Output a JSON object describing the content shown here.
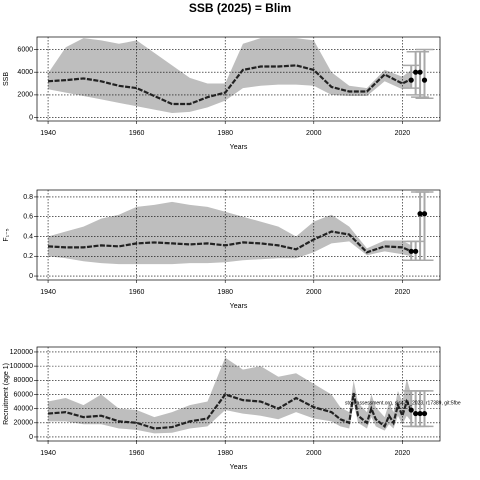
{
  "chart_data": [
    {
      "type": "line",
      "title": "SSB (2025) = Blim",
      "x_label": "Years",
      "y_label": "SSB",
      "x": [
        1940,
        1944,
        1948,
        1952,
        1956,
        1960,
        1964,
        1968,
        1972,
        1976,
        1980,
        1984,
        1988,
        1992,
        1996,
        2000,
        2004,
        2008,
        2012,
        2016,
        2020,
        2022
      ],
      "median": [
        3200,
        3300,
        3450,
        3200,
        2800,
        2600,
        1900,
        1200,
        1200,
        1800,
        2200,
        4200,
        4500,
        4500,
        4600,
        4200,
        2700,
        2300,
        2300,
        3800,
        3000,
        3400
      ],
      "upper": [
        3900,
        6200,
        7000,
        6800,
        6500,
        6800,
        5700,
        4600,
        3500,
        3000,
        3000,
        6500,
        7000,
        7000,
        7000,
        6800,
        4000,
        2800,
        2600,
        4200,
        3600,
        4200
      ],
      "lower": [
        2500,
        2200,
        1900,
        1600,
        1300,
        1000,
        700,
        400,
        500,
        900,
        1500,
        2600,
        2800,
        2900,
        2900,
        2800,
        2000,
        1900,
        1900,
        3200,
        2500,
        2700
      ],
      "projection": {
        "x": [
          2022,
          2023,
          2024,
          2025
        ],
        "values": [
          3300,
          4000,
          4000,
          3300
        ],
        "lower": [
          2600,
          2000,
          1800,
          1700
        ],
        "upper": [
          4600,
          5800,
          5800,
          6000
        ]
      },
      "band_color": "#bebebe",
      "line_color": "#222222",
      "errorbar_color": "#a8a8a8",
      "xlim": [
        1937.5,
        2028.5
      ],
      "xticks": [
        1940,
        1960,
        1980,
        2000,
        2020
      ],
      "ylim": [
        -300,
        7100
      ],
      "yticks": [
        0,
        2000,
        4000,
        6000
      ],
      "grid": true
    },
    {
      "type": "line",
      "x_label": "Years",
      "y_label": "F₁₋₅",
      "x": [
        1940,
        1944,
        1948,
        1952,
        1956,
        1960,
        1964,
        1968,
        1972,
        1976,
        1980,
        1984,
        1988,
        1992,
        1996,
        2000,
        2004,
        2008,
        2012,
        2016,
        2020,
        2022
      ],
      "median": [
        0.3,
        0.29,
        0.29,
        0.31,
        0.3,
        0.33,
        0.34,
        0.33,
        0.32,
        0.33,
        0.31,
        0.34,
        0.33,
        0.31,
        0.27,
        0.37,
        0.45,
        0.42,
        0.24,
        0.3,
        0.29,
        0.25
      ],
      "upper": [
        0.4,
        0.45,
        0.5,
        0.58,
        0.62,
        0.7,
        0.72,
        0.75,
        0.72,
        0.7,
        0.65,
        0.6,
        0.55,
        0.5,
        0.4,
        0.55,
        0.62,
        0.5,
        0.28,
        0.36,
        0.36,
        0.31
      ],
      "lower": [
        0.2,
        0.18,
        0.15,
        0.13,
        0.12,
        0.12,
        0.12,
        0.12,
        0.13,
        0.13,
        0.14,
        0.16,
        0.17,
        0.18,
        0.18,
        0.24,
        0.33,
        0.35,
        0.21,
        0.25,
        0.22,
        0.2
      ],
      "projection": {
        "x": [
          2022,
          2023,
          2024,
          2025
        ],
        "values": [
          0.25,
          0.25,
          0.63,
          0.63
        ],
        "lower": [
          0.16,
          0.16,
          0.16,
          0.16
        ],
        "upper": [
          0.35,
          0.35,
          0.85,
          0.85
        ]
      },
      "band_color": "#bebebe",
      "line_color": "#222222",
      "errorbar_color": "#a8a8a8",
      "xlim": [
        1937.5,
        2028.5
      ],
      "xticks": [
        1940,
        1960,
        1980,
        2000,
        2020
      ],
      "ylim": [
        -0.04,
        0.87
      ],
      "yticks": [
        0.0,
        0.2,
        0.4,
        0.6,
        0.8
      ],
      "grid": true
    },
    {
      "type": "line",
      "x_label": "Years",
      "y_label": "Recruitment (age 1)",
      "annotation": "stockassessment.org, sjs479_2023, r17389, git:5fbe",
      "x": [
        1940,
        1944,
        1948,
        1952,
        1956,
        1960,
        1964,
        1968,
        1972,
        1976,
        1980,
        1984,
        1988,
        1992,
        1996,
        2000,
        2004,
        2006,
        2008,
        2009,
        2010,
        2012,
        2013,
        2014,
        2016,
        2017,
        2018,
        2019,
        2020,
        2021,
        2022
      ],
      "median": [
        33000,
        35000,
        28000,
        30000,
        22000,
        20000,
        12000,
        14000,
        22000,
        26000,
        60000,
        52000,
        50000,
        40000,
        55000,
        42000,
        35000,
        25000,
        20000,
        62000,
        30000,
        20000,
        40000,
        25000,
        15000,
        30000,
        20000,
        45000,
        30000,
        50000,
        38000
      ],
      "upper": [
        50000,
        55000,
        45000,
        60000,
        40000,
        38000,
        28000,
        35000,
        45000,
        50000,
        112000,
        95000,
        100000,
        85000,
        90000,
        75000,
        60000,
        42000,
        35000,
        80000,
        48000,
        35000,
        60000,
        42000,
        28000,
        48000,
        35000,
        65000,
        50000,
        82000,
        60000
      ],
      "lower": [
        22000,
        22000,
        18000,
        18000,
        12000,
        10000,
        5000,
        6000,
        12000,
        15000,
        38000,
        33000,
        30000,
        25000,
        35000,
        26000,
        22000,
        15000,
        12000,
        48000,
        20000,
        12000,
        28000,
        15000,
        9000,
        18000,
        12000,
        30000,
        18000,
        30000,
        22000
      ],
      "projection": {
        "x": [
          2022,
          2023,
          2024,
          2025
        ],
        "values": [
          38000,
          33000,
          33000,
          33000
        ],
        "lower": [
          15000,
          15000,
          15000,
          15000
        ],
        "upper": [
          65000,
          65000,
          65000,
          65000
        ]
      },
      "band_color": "#bebebe",
      "line_color": "#222222",
      "errorbar_color": "#a8a8a8",
      "xlim": [
        1937.5,
        2028.5
      ],
      "xticks": [
        1940,
        1960,
        1980,
        2000,
        2020
      ],
      "ylim": [
        -5700,
        127000
      ],
      "yticks": [
        0,
        20000,
        40000,
        60000,
        80000,
        100000,
        120000
      ],
      "grid": true
    }
  ]
}
